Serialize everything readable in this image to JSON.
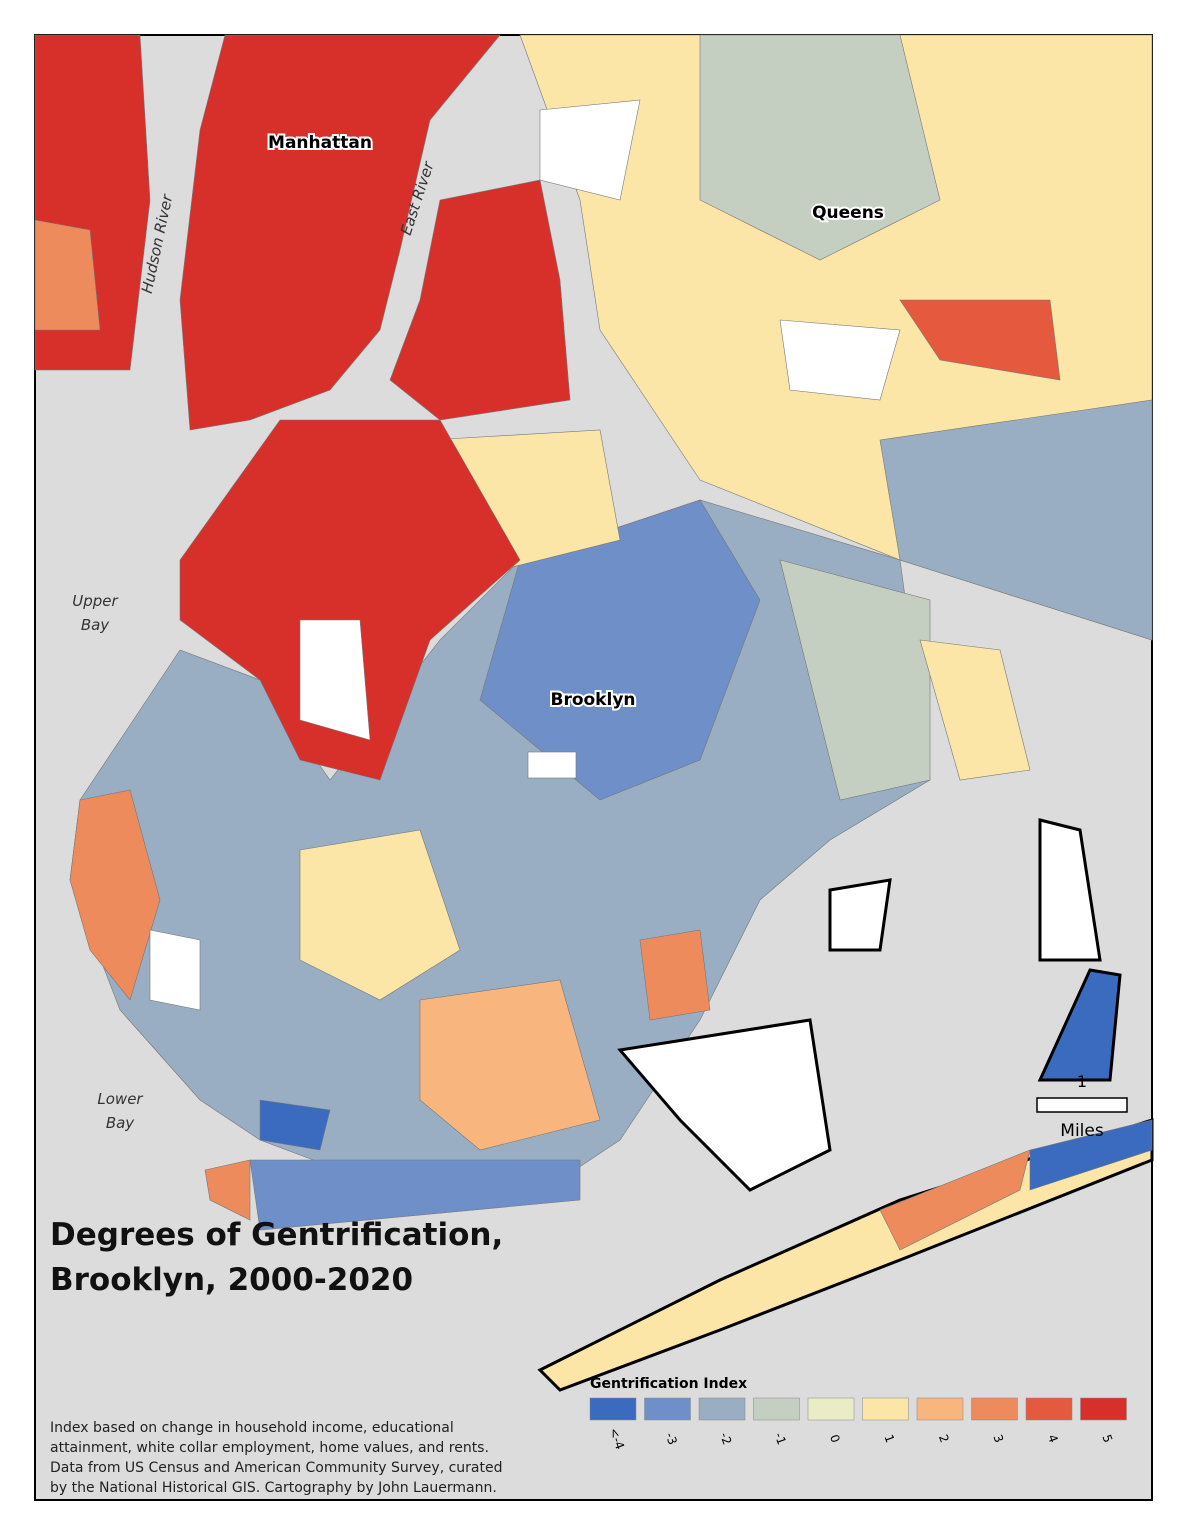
{
  "title": [
    "Degrees of Gentrification,",
    "Brooklyn, 2000-2020"
  ],
  "places": {
    "manhattan": "Manhattan",
    "queens": "Queens",
    "brooklyn": "Brooklyn",
    "hudson_river": "Hudson River",
    "east_river": "East River",
    "upper_bay": [
      "Upper",
      "Bay"
    ],
    "lower_bay": [
      "Lower",
      "Bay"
    ]
  },
  "legend": {
    "title": "Gentrification Index",
    "items": [
      {
        "label": "<-4",
        "color": "#3a6bbf"
      },
      {
        "label": "-3",
        "color": "#6f8fc9"
      },
      {
        "label": "-2",
        "color": "#99aec2"
      },
      {
        "label": "-1",
        "color": "#c4cfc2"
      },
      {
        "label": "0",
        "color": "#e9ecc4"
      },
      {
        "label": "1",
        "color": "#fbe6a7"
      },
      {
        "label": "2",
        "color": "#f8b57e"
      },
      {
        "label": "3",
        "color": "#ee8b5d"
      },
      {
        "label": "4",
        "color": "#e55a3e"
      },
      {
        "label": "5",
        "color": "#d7302b"
      }
    ]
  },
  "scale_bar": {
    "distance": "1",
    "unit": "Miles"
  },
  "note": [
    "Index based on change in household income, educational",
    "attainment, white collar employment, home values, and rents.",
    "Data from US Census and American Community Survey, curated",
    "by the National Historical GIS. Cartography by John Lauermann."
  ]
}
